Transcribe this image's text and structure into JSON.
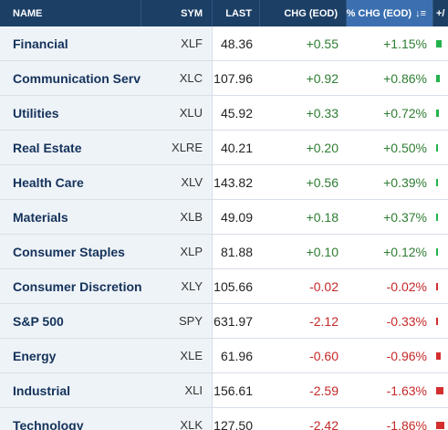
{
  "headers": {
    "name": "NAME",
    "sym": "SYM",
    "last": "LAST",
    "chg": "CHG (EOD)",
    "pct": "% CHG (EOD)",
    "extra": "+/"
  },
  "colors": {
    "header_bg": "#1c3f66",
    "sorted_header_bg": "#3b6fb0",
    "positive": "#2e7d32",
    "negative": "#c62828",
    "bar_up": "#22b24c",
    "bar_down": "#d32f2f"
  },
  "sort_icon": "sort-descending-icon",
  "rows": [
    {
      "name": "Financial",
      "sym": "XLF",
      "last": "48.36",
      "chg": "+0.55",
      "pct": "+1.15%",
      "dir": "up",
      "pct_value": 1.15
    },
    {
      "name": "Communication Services",
      "sym": "XLC",
      "last": "107.96",
      "chg": "+0.92",
      "pct": "+0.86%",
      "dir": "up",
      "pct_value": 0.86
    },
    {
      "name": "Utilities",
      "sym": "XLU",
      "last": "45.92",
      "chg": "+0.33",
      "pct": "+0.72%",
      "dir": "up",
      "pct_value": 0.72
    },
    {
      "name": "Real Estate",
      "sym": "XLRE",
      "last": "40.21",
      "chg": "+0.20",
      "pct": "+0.50%",
      "dir": "up",
      "pct_value": 0.5
    },
    {
      "name": "Health Care",
      "sym": "XLV",
      "last": "143.82",
      "chg": "+0.56",
      "pct": "+0.39%",
      "dir": "up",
      "pct_value": 0.39
    },
    {
      "name": "Materials",
      "sym": "XLB",
      "last": "49.09",
      "chg": "+0.18",
      "pct": "+0.37%",
      "dir": "up",
      "pct_value": 0.37
    },
    {
      "name": "Consumer Staples",
      "sym": "XLP",
      "last": "81.88",
      "chg": "+0.10",
      "pct": "+0.12%",
      "dir": "up",
      "pct_value": 0.12
    },
    {
      "name": "Consumer Discretionary",
      "sym": "XLY",
      "last": "105.66",
      "chg": "-0.02",
      "pct": "-0.02%",
      "dir": "down",
      "pct_value": -0.02
    },
    {
      "name": "S&P 500",
      "sym": "SPY",
      "last": "631.97",
      "chg": "-2.12",
      "pct": "-0.33%",
      "dir": "down",
      "pct_value": -0.33
    },
    {
      "name": "Energy",
      "sym": "XLE",
      "last": "61.96",
      "chg": "-0.60",
      "pct": "-0.96%",
      "dir": "down",
      "pct_value": -0.96
    },
    {
      "name": "Industrial",
      "sym": "XLI",
      "last": "156.61",
      "chg": "-2.59",
      "pct": "-1.63%",
      "dir": "down",
      "pct_value": -1.63
    },
    {
      "name": "Technology",
      "sym": "XLK",
      "last": "127.50",
      "chg": "-2.42",
      "pct": "-1.86%",
      "dir": "down",
      "pct_value": -1.86
    }
  ]
}
